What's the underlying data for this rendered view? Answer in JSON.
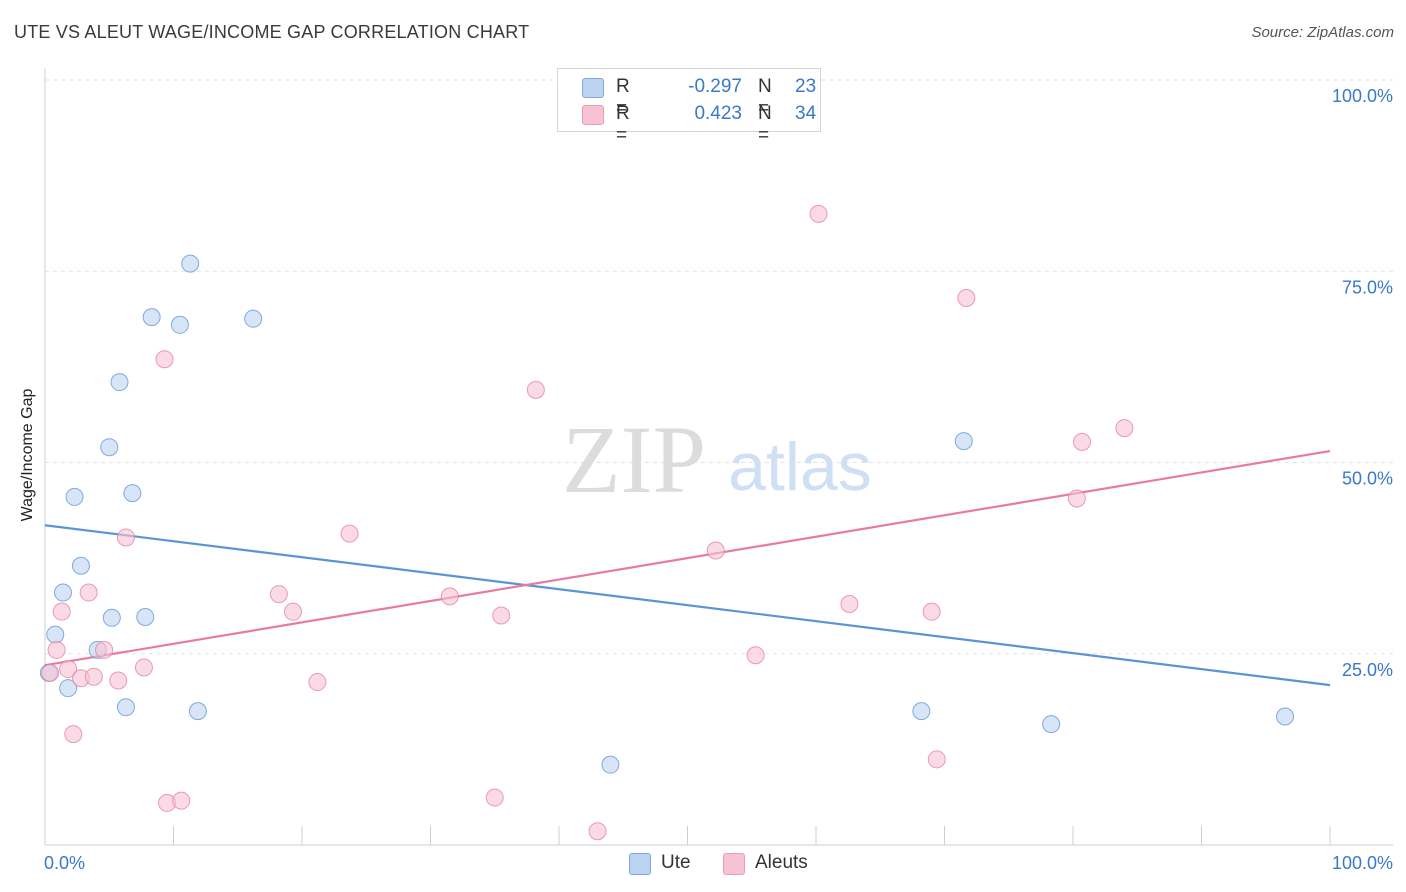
{
  "title": "UTE VS ALEUT WAGE/INCOME GAP CORRELATION CHART",
  "source": "Source: ZipAtlas.com",
  "watermark": {
    "zip": "ZIP",
    "atlas": "atlas"
  },
  "legend_stats": [
    {
      "series": "Ute",
      "r_label": "R =",
      "r_value": "-0.297",
      "n_label": "N =",
      "n_value": "23"
    },
    {
      "series": "Aleuts",
      "r_label": "R =",
      "r_value": "0.423",
      "n_label": "N =",
      "n_value": "34"
    }
  ],
  "chart_data": {
    "type": "scatter",
    "title": "UTE VS ALEUT WAGE/INCOME GAP CORRELATION CHART",
    "xlabel": "",
    "ylabel": "Wage/Income Gap",
    "xlim": [
      0,
      100
    ],
    "ylim": [
      0,
      100
    ],
    "x_tick_labels": [
      "0.0%",
      "100.0%"
    ],
    "y_ticks": [
      25,
      50,
      75,
      100
    ],
    "y_tick_labels": [
      "25.0%",
      "50.0%",
      "75.0%",
      "100.0%"
    ],
    "grid": "horizontal dashed",
    "legend": "bottom-center",
    "colors": {
      "Ute": "#5a93d6",
      "Aleuts": "#e77ba0",
      "Ute_fill": "#bcd4f2",
      "Aleuts_fill": "#f7c3d3",
      "tick_text": "#3a78c9"
    },
    "series": [
      {
        "name": "Ute",
        "points": [
          [
            0.8,
            27.5
          ],
          [
            1.4,
            33.0
          ],
          [
            1.8,
            20.5
          ],
          [
            2.3,
            45.5
          ],
          [
            2.8,
            36.5
          ],
          [
            4.1,
            25.5
          ],
          [
            5.0,
            52.0
          ],
          [
            5.2,
            29.7
          ],
          [
            5.8,
            60.5
          ],
          [
            6.3,
            18.0
          ],
          [
            6.8,
            46.0
          ],
          [
            7.8,
            29.8
          ],
          [
            8.3,
            69.0
          ],
          [
            10.5,
            68.0
          ],
          [
            11.3,
            76.0
          ],
          [
            11.9,
            17.5
          ],
          [
            16.2,
            68.8
          ],
          [
            44.0,
            10.5
          ],
          [
            68.2,
            17.5
          ],
          [
            71.5,
            52.8
          ],
          [
            78.3,
            15.8
          ],
          [
            96.5,
            16.8
          ],
          [
            0.3,
            22.5
          ]
        ],
        "trend": [
          [
            0,
            41.8
          ],
          [
            100,
            20.9
          ]
        ]
      },
      {
        "name": "Aleuts",
        "points": [
          [
            0.4,
            22.5
          ],
          [
            0.9,
            25.5
          ],
          [
            1.3,
            30.5
          ],
          [
            1.8,
            23.0
          ],
          [
            2.2,
            14.5
          ],
          [
            2.8,
            21.8
          ],
          [
            3.4,
            33.0
          ],
          [
            3.8,
            22.0
          ],
          [
            4.6,
            25.5
          ],
          [
            5.7,
            21.5
          ],
          [
            6.3,
            40.2
          ],
          [
            7.7,
            23.2
          ],
          [
            9.3,
            63.5
          ],
          [
            9.5,
            5.5
          ],
          [
            10.6,
            5.8
          ],
          [
            18.2,
            32.8
          ],
          [
            19.3,
            30.5
          ],
          [
            21.2,
            21.3
          ],
          [
            23.7,
            40.7
          ],
          [
            31.5,
            32.5
          ],
          [
            35.0,
            6.2
          ],
          [
            35.5,
            30.0
          ],
          [
            38.2,
            59.5
          ],
          [
            43.0,
            1.8
          ],
          [
            52.2,
            38.5
          ],
          [
            55.3,
            24.8
          ],
          [
            60.2,
            82.5
          ],
          [
            62.6,
            31.5
          ],
          [
            69.0,
            30.5
          ],
          [
            69.4,
            11.2
          ],
          [
            71.7,
            71.5
          ],
          [
            80.3,
            45.3
          ],
          [
            80.7,
            52.7
          ],
          [
            84.0,
            54.5
          ]
        ],
        "trend": [
          [
            0,
            23.5
          ],
          [
            100,
            51.5
          ]
        ]
      }
    ]
  }
}
